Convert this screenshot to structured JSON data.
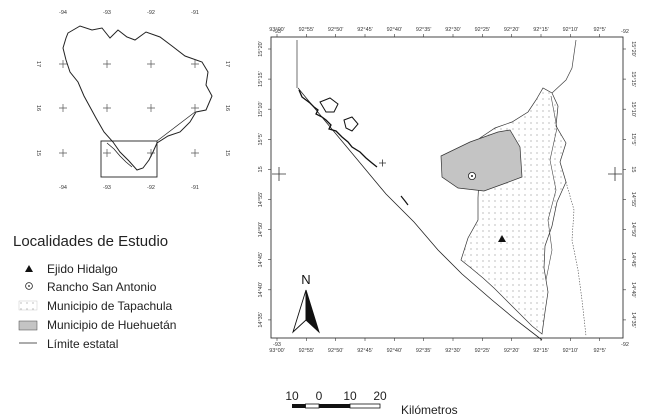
{
  "inset_map": {
    "top_labels": [
      "-94",
      "-93",
      "-92",
      "-91"
    ],
    "bottom_labels": [
      "-94",
      "-93",
      "-92",
      "-91"
    ],
    "left_labels": [
      "17",
      "16",
      "15"
    ],
    "right_labels": [
      "17",
      "16",
      "15"
    ]
  },
  "main_map": {
    "top_ticks": [
      "93°00'",
      "92°55'",
      "92°50'",
      "92°45'",
      "92°40'",
      "92°35'",
      "92°30'",
      "92°25'",
      "92°20'",
      "92°15'",
      "92°10'",
      "92°5'"
    ],
    "bottom_ticks": [
      "93°00'",
      "92°55'",
      "92°50'",
      "92°45'",
      "92°40'",
      "92°35'",
      "92°30'",
      "92°25'",
      "92°20'",
      "92°15'",
      "92°10'",
      "92°5'"
    ],
    "corner_top_left": "-93",
    "corner_top_right": "-92",
    "corner_bottom_left": "-93",
    "corner_bottom_right": "-92",
    "left_ticks": [
      "15°20'",
      "15°15'",
      "15°10'",
      "15°5'",
      "15",
      "14°55'",
      "14°50'",
      "14°45'",
      "14°40'",
      "14°35'"
    ],
    "right_ticks": [
      "15°20'",
      "15°15'",
      "15°10'",
      "15°5'",
      "15",
      "14°55'",
      "14°50'",
      "14°45'",
      "14°40'",
      "14°35'"
    ],
    "north_label": "N"
  },
  "legend": {
    "title": "Localidades de Estudio",
    "items": [
      {
        "symbol": "triangle",
        "label": "Ejido Hidalgo"
      },
      {
        "symbol": "dot-circle",
        "label": "Rancho San Antonio"
      },
      {
        "symbol": "dotted-box",
        "label": "Municipio de Tapachula"
      },
      {
        "symbol": "gray-box",
        "label": "Municipio de Huehuetán"
      },
      {
        "symbol": "line",
        "label": "Límite estatal"
      }
    ]
  },
  "scale_bar": {
    "labels": [
      "10",
      "0",
      "10",
      "20"
    ],
    "unit": "Kilómetros"
  },
  "colors": {
    "huehuetan_fill": "#c4c4c4",
    "line": "#222222"
  }
}
